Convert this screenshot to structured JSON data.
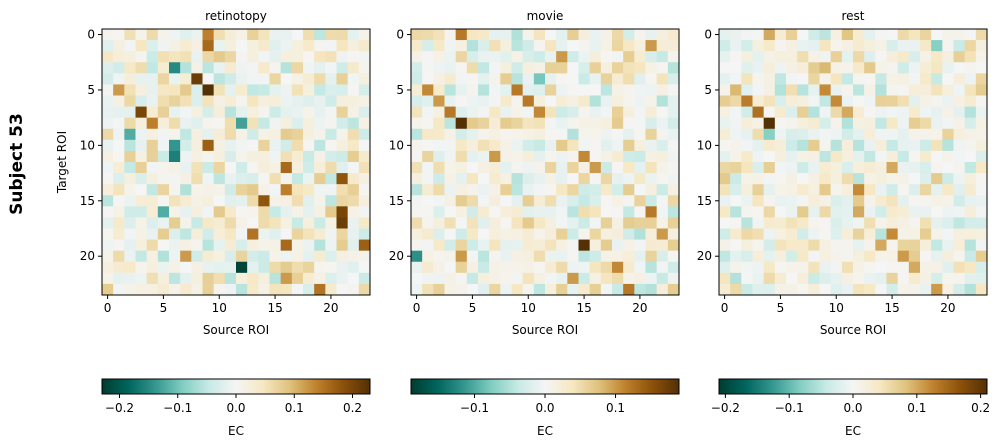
{
  "figure": {
    "row_label": "Subject 53"
  },
  "chart_data": [
    {
      "type": "heatmap",
      "title": "retinotopy",
      "xlabel": "Source ROI",
      "ylabel": "Target ROI",
      "n_rows": 24,
      "n_cols": 24,
      "x_ticks": [
        0,
        5,
        10,
        15,
        20
      ],
      "y_ticks": [
        0,
        5,
        10,
        15,
        20
      ],
      "colormap": "BrBG_r",
      "vmin": -0.23,
      "vmax": 0.23,
      "colorbar": {
        "label": "EC",
        "ticks": [
          -0.2,
          -0.1,
          0.0,
          0.1,
          0.2
        ],
        "tick_labels": [
          "−0.2",
          "−0.1",
          "0.0",
          "0.1",
          "0.2"
        ]
      },
      "seed": 53101,
      "highlights": [
        {
          "row": 0,
          "col": 9,
          "value": 0.14
        },
        {
          "row": 1,
          "col": 9,
          "value": 0.16
        },
        {
          "row": 3,
          "col": 6,
          "value": -0.15
        },
        {
          "row": 4,
          "col": 8,
          "value": 0.21
        },
        {
          "row": 5,
          "col": 9,
          "value": 0.23
        },
        {
          "row": 5,
          "col": 1,
          "value": 0.12
        },
        {
          "row": 7,
          "col": 3,
          "value": 0.2
        },
        {
          "row": 8,
          "col": 4,
          "value": 0.14
        },
        {
          "row": 8,
          "col": 12,
          "value": -0.13
        },
        {
          "row": 9,
          "col": 2,
          "value": -0.12
        },
        {
          "row": 10,
          "col": 9,
          "value": 0.17
        },
        {
          "row": 10,
          "col": 6,
          "value": -0.14
        },
        {
          "row": 11,
          "col": 6,
          "value": -0.16
        },
        {
          "row": 12,
          "col": 16,
          "value": 0.16
        },
        {
          "row": 13,
          "col": 21,
          "value": 0.18
        },
        {
          "row": 14,
          "col": 16,
          "value": 0.14
        },
        {
          "row": 15,
          "col": 14,
          "value": 0.18
        },
        {
          "row": 16,
          "col": 21,
          "value": 0.2
        },
        {
          "row": 17,
          "col": 21,
          "value": 0.21
        },
        {
          "row": 16,
          "col": 5,
          "value": -0.12
        },
        {
          "row": 18,
          "col": 13,
          "value": 0.15
        },
        {
          "row": 19,
          "col": 23,
          "value": 0.17
        },
        {
          "row": 19,
          "col": 16,
          "value": 0.16
        },
        {
          "row": 20,
          "col": 7,
          "value": 0.12
        },
        {
          "row": 21,
          "col": 12,
          "value": -0.22
        },
        {
          "row": 22,
          "col": 16,
          "value": 0.12
        },
        {
          "row": 23,
          "col": 19,
          "value": 0.15
        }
      ]
    },
    {
      "type": "heatmap",
      "title": "movie",
      "xlabel": "Source ROI",
      "ylabel": "",
      "n_rows": 24,
      "n_cols": 24,
      "x_ticks": [
        0,
        5,
        10,
        15,
        20
      ],
      "y_ticks": [
        0,
        5,
        10,
        15,
        20
      ],
      "colormap": "BrBG_r",
      "vmin": -0.19,
      "vmax": 0.19,
      "colorbar": {
        "label": "EC",
        "ticks": [
          -0.1,
          0.0,
          0.1
        ],
        "tick_labels": [
          "−0.1",
          "0.0",
          "0.1"
        ]
      },
      "seed": 53202,
      "highlights": [
        {
          "row": 0,
          "col": 4,
          "value": 0.12
        },
        {
          "row": 1,
          "col": 21,
          "value": 0.1
        },
        {
          "row": 2,
          "col": 13,
          "value": 0.1
        },
        {
          "row": 4,
          "col": 11,
          "value": -0.08
        },
        {
          "row": 5,
          "col": 1,
          "value": 0.11
        },
        {
          "row": 5,
          "col": 9,
          "value": 0.12
        },
        {
          "row": 6,
          "col": 2,
          "value": 0.1
        },
        {
          "row": 6,
          "col": 10,
          "value": 0.12
        },
        {
          "row": 7,
          "col": 3,
          "value": 0.12
        },
        {
          "row": 7,
          "col": 11,
          "value": 0.11
        },
        {
          "row": 8,
          "col": 4,
          "value": 0.19
        },
        {
          "row": 11,
          "col": 7,
          "value": 0.1
        },
        {
          "row": 11,
          "col": 15,
          "value": 0.11
        },
        {
          "row": 12,
          "col": 16,
          "value": 0.1
        },
        {
          "row": 16,
          "col": 21,
          "value": 0.12
        },
        {
          "row": 18,
          "col": 22,
          "value": 0.1
        },
        {
          "row": 19,
          "col": 15,
          "value": 0.19
        },
        {
          "row": 20,
          "col": 0,
          "value": -0.12
        },
        {
          "row": 20,
          "col": 4,
          "value": 0.1
        },
        {
          "row": 21,
          "col": 18,
          "value": 0.11
        },
        {
          "row": 22,
          "col": 14,
          "value": 0.1
        },
        {
          "row": 23,
          "col": 19,
          "value": 0.12
        }
      ]
    },
    {
      "type": "heatmap",
      "title": "rest",
      "xlabel": "Source ROI",
      "ylabel": "",
      "n_rows": 24,
      "n_cols": 24,
      "x_ticks": [
        0,
        5,
        10,
        15,
        20
      ],
      "y_ticks": [
        0,
        5,
        10,
        15,
        20
      ],
      "colormap": "BrBG_r",
      "vmin": -0.21,
      "vmax": 0.21,
      "colorbar": {
        "label": "EC",
        "ticks": [
          -0.2,
          -0.1,
          0.0,
          0.1,
          0.2
        ],
        "tick_labels": [
          "−0.2",
          "−0.1",
          "0.0",
          "0.1",
          "0.2"
        ]
      },
      "seed": 53303,
      "highlights": [
        {
          "row": 0,
          "col": 4,
          "value": 0.1
        },
        {
          "row": 0,
          "col": 11,
          "value": 0.08
        },
        {
          "row": 1,
          "col": 19,
          "value": -0.08
        },
        {
          "row": 3,
          "col": 9,
          "value": 0.09
        },
        {
          "row": 5,
          "col": 1,
          "value": 0.09
        },
        {
          "row": 5,
          "col": 9,
          "value": 0.12
        },
        {
          "row": 6,
          "col": 2,
          "value": 0.13
        },
        {
          "row": 6,
          "col": 10,
          "value": 0.12
        },
        {
          "row": 7,
          "col": 3,
          "value": 0.14
        },
        {
          "row": 7,
          "col": 11,
          "value": 0.1
        },
        {
          "row": 8,
          "col": 4,
          "value": 0.21
        },
        {
          "row": 9,
          "col": 4,
          "value": -0.08
        },
        {
          "row": 12,
          "col": 15,
          "value": 0.1
        },
        {
          "row": 14,
          "col": 12,
          "value": 0.12
        },
        {
          "row": 16,
          "col": 12,
          "value": 0.1
        },
        {
          "row": 18,
          "col": 15,
          "value": 0.12
        },
        {
          "row": 19,
          "col": 14,
          "value": 0.1
        },
        {
          "row": 20,
          "col": 16,
          "value": 0.11
        },
        {
          "row": 21,
          "col": 17,
          "value": 0.1
        },
        {
          "row": 23,
          "col": 19,
          "value": 0.11
        }
      ]
    }
  ]
}
